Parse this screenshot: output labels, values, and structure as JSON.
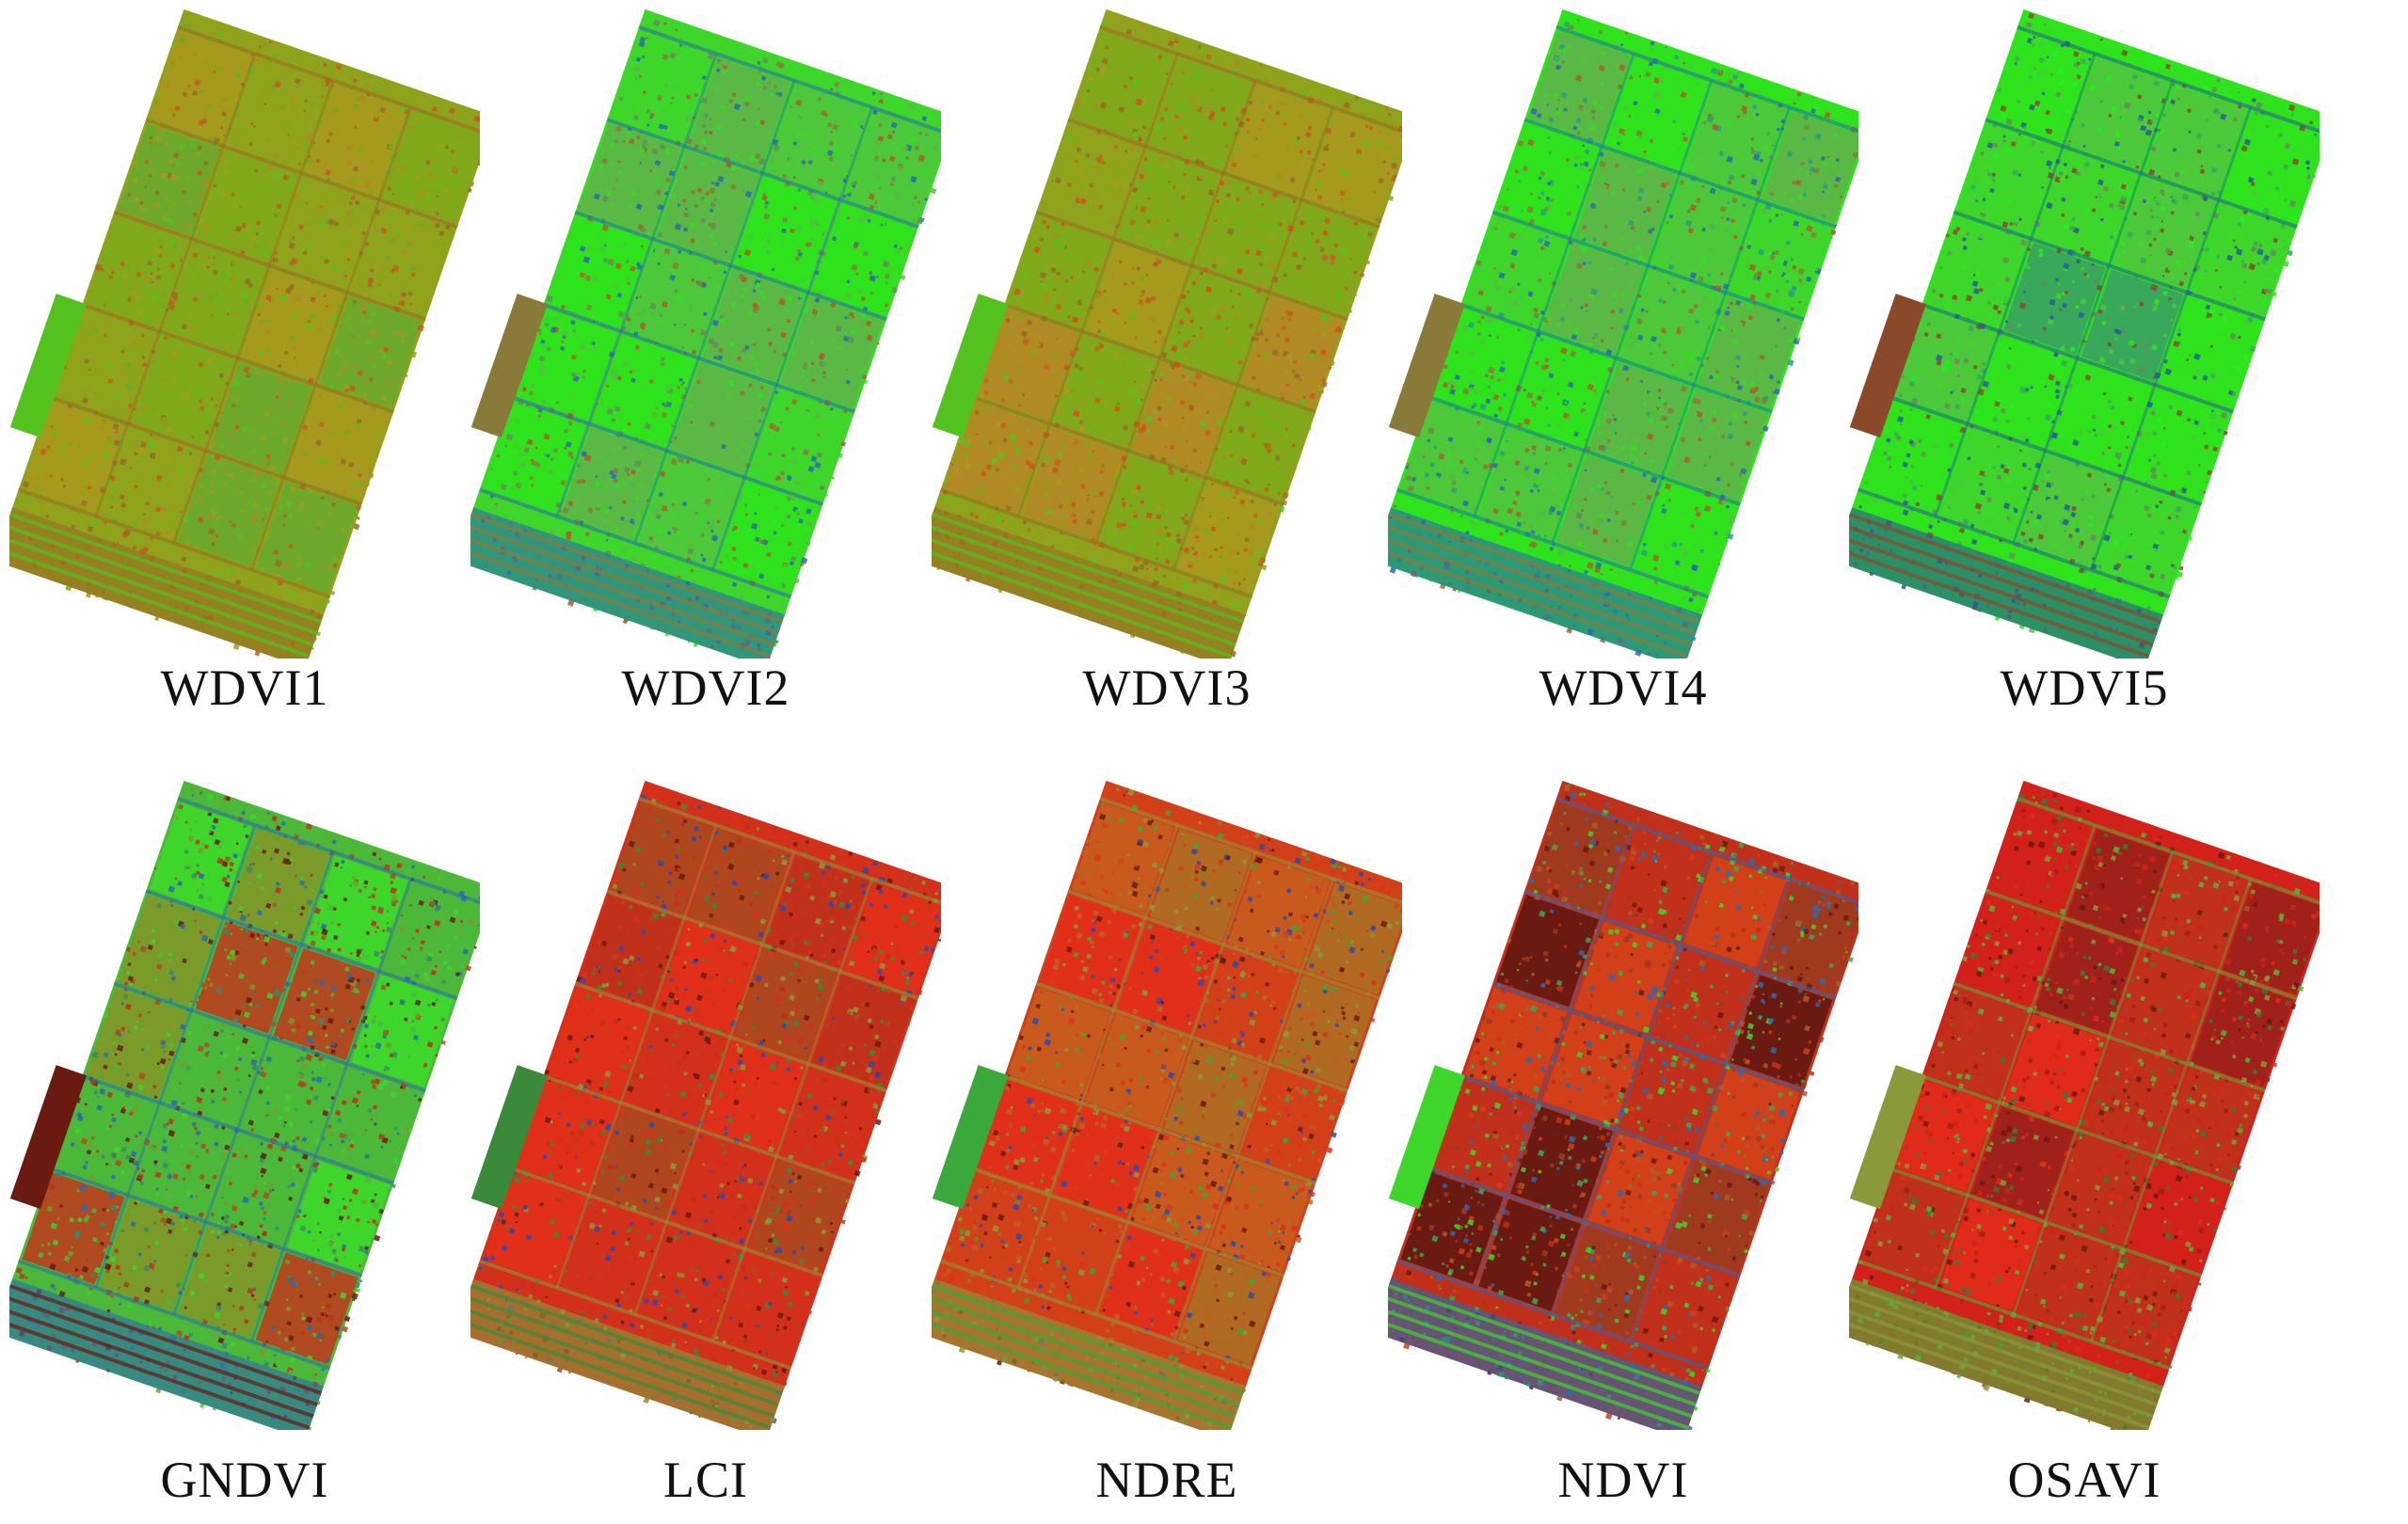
{
  "panels": [
    {
      "label": "WDVI1",
      "palette": [
        "#8fa21c",
        "#7fa81a",
        "#a69a1e",
        "#6ea82a",
        "#b08a22",
        "#9a6a24",
        "#54c21e",
        "#c45a1e"
      ]
    },
    {
      "label": "WDVI2",
      "palette": [
        "#3ed62a",
        "#2ee21c",
        "#4cc83a",
        "#5ab844",
        "#6a8a5a",
        "#2c6ab0",
        "#8a7a3a",
        "#b05a28"
      ]
    },
    {
      "label": "WDVI3",
      "palette": [
        "#8fa21c",
        "#7fa81a",
        "#a69a1e",
        "#b08a22",
        "#c4601e",
        "#9a6a24",
        "#54c21e",
        "#d2501a"
      ]
    },
    {
      "label": "WDVI4",
      "palette": [
        "#2ee21c",
        "#3ed62a",
        "#4cc83a",
        "#5ab844",
        "#2c9a8a",
        "#2c6ab0",
        "#8a7a3a",
        "#b05a28"
      ]
    },
    {
      "label": "WDVI5",
      "palette": [
        "#2ee21c",
        "#3ed62a",
        "#4cc83a",
        "#3aa85a",
        "#6a8a5a",
        "#2c5a9a",
        "#8a4a2a",
        "#1ef21a"
      ]
    },
    {
      "label": "GNDVI",
      "palette": [
        "#4cb83a",
        "#7a9a2a",
        "#3ed62a",
        "#b04a20",
        "#c0301a",
        "#2c6ab0",
        "#6a1a10",
        "#3a8a6a"
      ]
    },
    {
      "label": "LCI",
      "palette": [
        "#d2301a",
        "#e0301a",
        "#c0301a",
        "#b0461e",
        "#6a1a10",
        "#8a9a3a",
        "#3a8a3a",
        "#2c4ab0"
      ]
    },
    {
      "label": "NDRE",
      "palette": [
        "#d2401a",
        "#c85a1e",
        "#b06a22",
        "#e0301a",
        "#6a1a10",
        "#8a9a3a",
        "#3aa83a",
        "#2c4ab0"
      ]
    },
    {
      "label": "NDVI",
      "palette": [
        "#c0301a",
        "#d2401a",
        "#a03a1e",
        "#6a1a10",
        "#3aa85a",
        "#2c6ab0",
        "#3ed62a",
        "#b05a28"
      ]
    },
    {
      "label": "OSAVI",
      "palette": [
        "#d2201a",
        "#c0301a",
        "#e02a1a",
        "#a0201a",
        "#6a1a10",
        "#4cb83a",
        "#8a9a3a",
        "#3a7a3a"
      ]
    }
  ]
}
